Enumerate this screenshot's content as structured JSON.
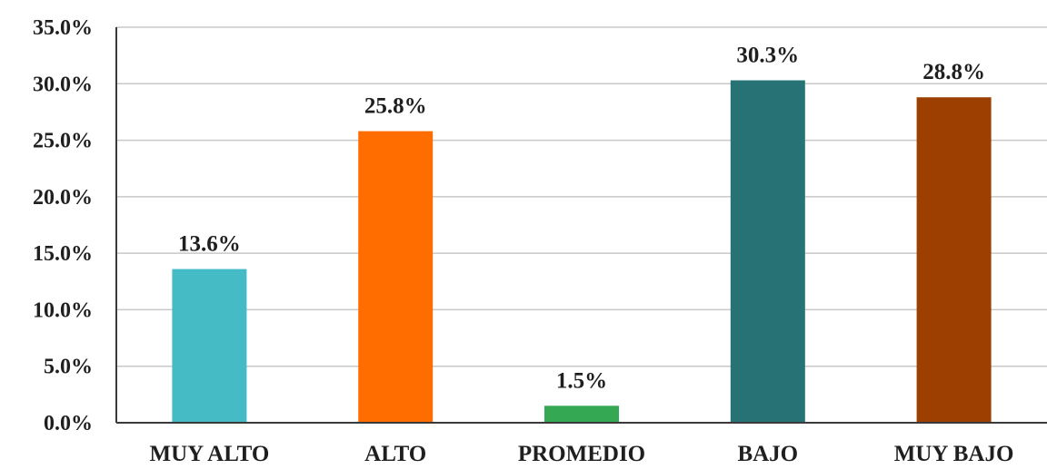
{
  "chart_data": {
    "type": "bar",
    "title": "",
    "xlabel": "",
    "ylabel": "",
    "categories": [
      "MUY ALTO",
      "ALTO",
      "PROMEDIO",
      "BAJO",
      "MUY BAJO"
    ],
    "values": [
      13.6,
      25.8,
      1.5,
      30.3,
      28.8
    ],
    "data_labels": [
      "13.6%",
      "25.8%",
      "1.5%",
      "30.3%",
      "28.8%"
    ],
    "colors": [
      "#45BBC6",
      "#FF6D00",
      "#34A853",
      "#267274",
      "#9C3F00"
    ],
    "ylim": [
      0,
      35
    ],
    "yticks": [
      0,
      5,
      10,
      15,
      20,
      25,
      30,
      35
    ],
    "ytick_labels": [
      "0.0%",
      "5.0%",
      "10.0%",
      "15.0%",
      "20.0%",
      "25.0%",
      "30.0%",
      "35.0%"
    ],
    "grid": true,
    "legend": "none"
  }
}
